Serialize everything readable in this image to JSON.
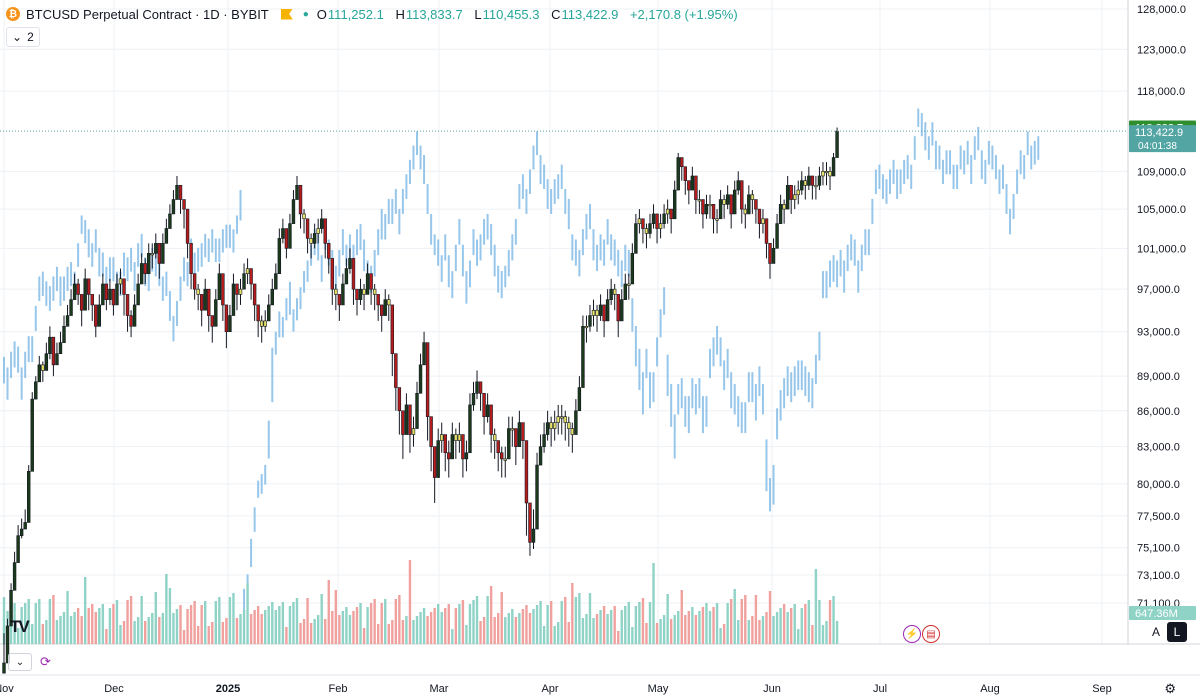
{
  "header": {
    "symbol": "BTCUSD Perpetual Contract · 1D · BYBIT",
    "coin_glyph": "₿",
    "open_label": "O",
    "open": "111,252.1",
    "high_label": "H",
    "high": "113,833.7",
    "low_label": "L",
    "low": "110,455.3",
    "close_label": "C",
    "close": "113,422.9",
    "change": "+2,170.8 (+1.95%)"
  },
  "indicator_toggle": {
    "label": "2",
    "icon": "chevron-down-icon"
  },
  "price_axis": {
    "ticks": [
      128000,
      123000,
      118000,
      113833.7,
      109000,
      105000,
      101000,
      97000,
      93000,
      89000,
      86000,
      83000,
      80000,
      77500,
      75100,
      73100,
      71100
    ],
    "tick_labels": [
      "128,000.0",
      "123,000.0",
      "118,000.0",
      "",
      "109,000.0",
      "105,000.0",
      "101,000.0",
      "97,000.0",
      "93,000.0",
      "89,000.0",
      "86,000.0",
      "83,000.0",
      "80,000.0",
      "77,500.0",
      "75,100.0",
      "73,100.0",
      "71,100.0"
    ],
    "badges": {
      "high_value": "113,833.7",
      "last_price": "113,422.9",
      "countdown": "04:01:38",
      "volume": "647.36M"
    }
  },
  "time_axis": {
    "labels": [
      "Nov",
      "Dec",
      "2025",
      "Feb",
      "Mar",
      "Apr",
      "May",
      "Jun",
      "Jul",
      "Aug",
      "Sep"
    ]
  },
  "buttons": {
    "auto": "A",
    "log": "L"
  },
  "icons": [
    "gear-icon",
    "refresh-icon",
    "chevron-down-icon",
    "lightning-icon",
    "flag-us-icon",
    "tradingview-logo-icon"
  ],
  "colors": {
    "bull": "#1b3a1b",
    "bear": "#b71c1c",
    "doji": "#e7e36a",
    "ghost": "#86bde8",
    "vol_up": "#8fd3c6",
    "vol_down": "#f0a19e",
    "last_price": "#53a5a3",
    "high_badge": "#2f8f2f"
  },
  "chart_data": {
    "type": "candlestick",
    "symbol": "BTCUSD",
    "interval": "1D",
    "x": [
      "Nov 2024",
      "Sep 2025"
    ],
    "candle_closes": [
      67000,
      69500,
      72000,
      74000,
      76000,
      76500,
      77000,
      81000,
      87000,
      88500,
      90000,
      89500,
      91000,
      92500,
      90000,
      91000,
      92000,
      93500,
      94500,
      96000,
      97500,
      96500,
      95000,
      98000,
      96500,
      95500,
      93500,
      95500,
      97500,
      96000,
      97000,
      95500,
      97500,
      98000,
      96500,
      94500,
      93500,
      95500,
      97500,
      99500,
      98500,
      100500,
      100500,
      101500,
      99500,
      101500,
      103000,
      104500,
      106000,
      107500,
      106000,
      105000,
      101500,
      98500,
      97000,
      96500,
      95000,
      97000,
      94500,
      93500,
      96000,
      98500,
      95500,
      93000,
      94500,
      97500,
      96500,
      97000,
      98500,
      99000,
      97500,
      95500,
      94000,
      93500,
      94000,
      95500,
      97000,
      98500,
      102000,
      103000,
      101000,
      103500,
      106000,
      107500,
      104500,
      104000,
      102000,
      101500,
      102500,
      103000,
      104000,
      101500,
      100000,
      97000,
      96500,
      95500,
      97500,
      99000,
      100000,
      97000,
      96000,
      97000,
      96500,
      98500,
      97000,
      96500,
      95500,
      94500,
      96000,
      95500,
      91000,
      88000,
      86000,
      84000,
      86500,
      84000,
      84500,
      87500,
      90000,
      92000,
      85500,
      83000,
      80500,
      83500,
      84000,
      82500,
      82000,
      84000,
      83500,
      84000,
      82000,
      82500,
      86500,
      87500,
      88500,
      87500,
      85500,
      86500,
      84000,
      83500,
      82500,
      82000,
      82000,
      84500,
      84500,
      83000,
      85000,
      83500,
      78500,
      75500,
      76500,
      81500,
      83000,
      84000,
      85000,
      84500,
      85000,
      85500,
      85500,
      85000,
      84500,
      84000,
      86000,
      88000,
      93500,
      93500,
      94500,
      95000,
      94500,
      95500,
      94000,
      96000,
      97000,
      96500,
      94000,
      96000,
      97500,
      97500,
      100500,
      103500,
      104000,
      103000,
      102500,
      103500,
      104500,
      103000,
      103500,
      104500,
      105000,
      104000,
      107000,
      110500,
      109500,
      108000,
      107000,
      108500,
      106000,
      106000,
      104500,
      105500,
      105500,
      104000,
      104000,
      106000,
      105500,
      106500,
      104500,
      107000,
      108000,
      105000,
      104500,
      106500,
      106000,
      105000,
      103500,
      104000,
      101500,
      99500,
      101000,
      103500,
      105500,
      105000,
      107500,
      106000,
      106500,
      107000,
      108000,
      107500,
      108500,
      107500,
      107500,
      108500,
      109000,
      109000,
      108500,
      110500,
      113422.9
    ],
    "candle_highs": [
      69000,
      70000,
      72500,
      74800,
      76800,
      77300,
      78000,
      81500,
      87600,
      89000,
      90800,
      90300,
      92000,
      93500,
      91000,
      92000,
      93000,
      94500,
      95500,
      97000,
      98500,
      98000,
      96000,
      99000,
      97500,
      96500,
      95000,
      96500,
      98500,
      97000,
      98000,
      97000,
      98500,
      99000,
      97500,
      95500,
      95000,
      96500,
      98500,
      100500,
      100000,
      101500,
      101500,
      102500,
      100500,
      102500,
      104000,
      105500,
      107000,
      108500,
      107000,
      106000,
      103000,
      100000,
      98000,
      97500,
      96000,
      98000,
      96000,
      94500,
      97000,
      99500,
      97000,
      94500,
      95500,
      98500,
      97500,
      98000,
      99500,
      100000,
      99000,
      97000,
      95000,
      94500,
      95000,
      96500,
      98000,
      99500,
      103000,
      104000,
      102500,
      104500,
      107000,
      108500,
      106000,
      105000,
      103500,
      102500,
      103500,
      104000,
      105000,
      102500,
      101500,
      98000,
      97500,
      96500,
      98500,
      100000,
      101000,
      98500,
      97000,
      98000,
      97500,
      99500,
      98000,
      97500,
      96500,
      95500,
      97000,
      96500,
      92000,
      89500,
      87500,
      85500,
      87500,
      85500,
      85500,
      88500,
      91000,
      93000,
      87000,
      84500,
      82000,
      84500,
      85000,
      83500,
      83500,
      85000,
      84500,
      85000,
      83500,
      83500,
      87500,
      88500,
      89500,
      88500,
      86500,
      87500,
      85500,
      84500,
      83500,
      83000,
      83000,
      85500,
      85500,
      84500,
      86000,
      84500,
      80000,
      77000,
      78000,
      82500,
      84000,
      85000,
      86000,
      85500,
      86000,
      86500,
      86500,
      86000,
      85500,
      85000,
      87000,
      89000,
      94500,
      94500,
      95500,
      96000,
      95500,
      96500,
      95500,
      97000,
      98000,
      97500,
      95500,
      97000,
      98500,
      98500,
      101500,
      104500,
      105000,
      104000,
      103500,
      104500,
      105500,
      104500,
      104500,
      105500,
      106000,
      105000,
      108000,
      111000,
      110500,
      109500,
      108000,
      109500,
      107500,
      107000,
      105500,
      106500,
      106500,
      105000,
      105000,
      107000,
      106500,
      107500,
      106000,
      108000,
      109000,
      106500,
      105500,
      107500,
      107000,
      106000,
      104500,
      105000,
      103000,
      100500,
      102000,
      104500,
      106500,
      106000,
      108500,
      107000,
      107500,
      108000,
      109000,
      108500,
      109500,
      108500,
      108500,
      109500,
      110000,
      110000,
      109500,
      111000,
      113833.7
    ],
    "candle_lows": [
      66500,
      67500,
      70500,
      73000,
      75500,
      75800,
      76500,
      78500,
      83000,
      87000,
      88500,
      88500,
      90000,
      90500,
      89000,
      90000,
      91000,
      92500,
      93500,
      95000,
      96000,
      95500,
      93500,
      96500,
      95000,
      94000,
      92500,
      94000,
      96000,
      95000,
      95500,
      94500,
      96000,
      96500,
      94500,
      93000,
      92500,
      94000,
      96000,
      97500,
      97500,
      99000,
      99000,
      100000,
      98000,
      100000,
      101500,
      103000,
      104500,
      106000,
      104500,
      103000,
      100000,
      97000,
      96000,
      95000,
      93500,
      95500,
      93000,
      92000,
      94500,
      97000,
      94000,
      91500,
      93000,
      96000,
      95000,
      95500,
      97000,
      97500,
      96000,
      94000,
      92500,
      92000,
      93000,
      94000,
      95500,
      97000,
      100500,
      101500,
      100000,
      102000,
      104500,
      106000,
      103000,
      102500,
      100500,
      100000,
      101000,
      101500,
      102500,
      100000,
      98500,
      95500,
      95000,
      94000,
      96000,
      97500,
      98500,
      95500,
      94500,
      95500,
      95000,
      97000,
      95500,
      95000,
      94000,
      93000,
      94500,
      94000,
      89000,
      86000,
      84000,
      82000,
      85000,
      82500,
      83000,
      86000,
      88500,
      90500,
      83500,
      81000,
      78500,
      82000,
      82500,
      81000,
      80500,
      82500,
      82000,
      82500,
      80500,
      81000,
      85000,
      86000,
      87000,
      86000,
      84000,
      85000,
      82500,
      82000,
      81000,
      80500,
      80500,
      83000,
      83000,
      81500,
      83500,
      82000,
      76000,
      74500,
      75000,
      80000,
      81500,
      82500,
      83500,
      83000,
      83500,
      84000,
      84000,
      83500,
      83000,
      82500,
      84500,
      86500,
      92000,
      92000,
      93000,
      93500,
      93000,
      94000,
      92500,
      94500,
      95500,
      95000,
      92500,
      94500,
      96000,
      96000,
      99000,
      102000,
      102500,
      101500,
      101000,
      102000,
      103000,
      101500,
      102000,
      103000,
      103500,
      102500,
      105500,
      109000,
      108000,
      106500,
      105500,
      107000,
      104500,
      104500,
      103000,
      104000,
      104000,
      102500,
      102500,
      104500,
      104000,
      105000,
      103000,
      105500,
      106500,
      103500,
      103000,
      105000,
      104500,
      103500,
      102000,
      102500,
      100000,
      98000,
      99500,
      102000,
      104000,
      103500,
      106000,
      104500,
      105000,
      105500,
      106500,
      106000,
      107000,
      106000,
      106000,
      107000,
      107500,
      107500,
      107000,
      109000,
      110455.3
    ],
    "volume_range_M": [
      0,
      647.36
    ],
    "last_volume": "647.36M"
  }
}
